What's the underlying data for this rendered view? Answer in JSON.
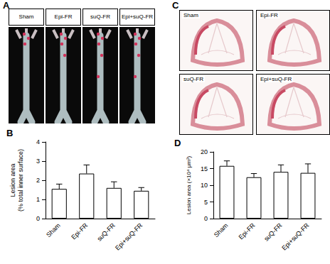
{
  "panel_A": {
    "label": "A",
    "groups": [
      "Sham",
      "Epi-FR",
      "suQ-FR",
      "Epi+suQ-FR"
    ]
  },
  "panel_C": {
    "label": "C",
    "groups": [
      "Sham",
      "Epi-FR",
      "suQ-FR",
      "Epi+suQ-FR"
    ]
  },
  "chart_data": [
    {
      "type": "bar",
      "title": "B",
      "ylabel": "Lesion area\n(% total inner surface)",
      "categories": [
        "Sham",
        "Epi-FR",
        "suQ-FR",
        "Epi+suQ-FR"
      ],
      "values": [
        1.55,
        2.35,
        1.6,
        1.45
      ],
      "errors": [
        0.25,
        0.45,
        0.32,
        0.17
      ],
      "color": "#ffffff",
      "ylim": [
        0,
        4
      ],
      "yticks": [
        0,
        1,
        2,
        3,
        4
      ],
      "grid": false
    },
    {
      "type": "bar",
      "title": "D",
      "ylabel": "Lesion area (×10⁴ μm²)",
      "categories": [
        "Sham",
        "Epi-FR",
        "suQ-FR",
        "Epi+suQ-FR"
      ],
      "values": [
        15.8,
        12.4,
        14.0,
        13.7
      ],
      "errors": [
        1.5,
        1.1,
        2.1,
        2.7
      ],
      "color": "#ffffff",
      "ylim": [
        0,
        20
      ],
      "yticks": [
        0,
        5,
        10,
        15,
        20
      ],
      "grid": false
    }
  ]
}
